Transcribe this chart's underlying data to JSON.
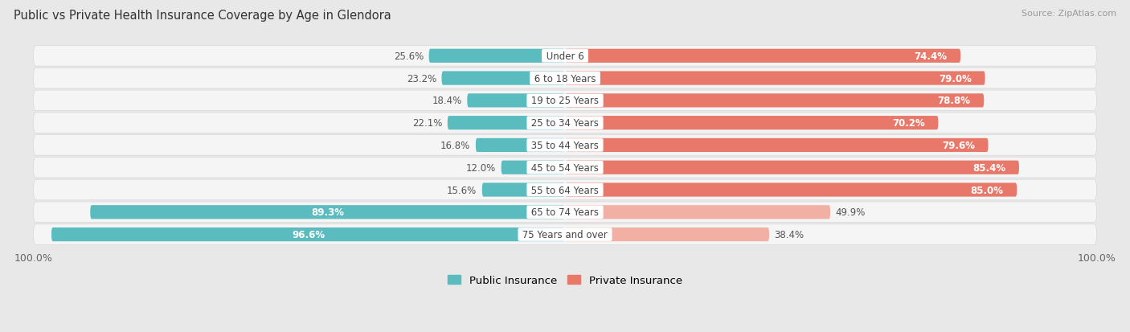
{
  "title": "Public vs Private Health Insurance Coverage by Age in Glendora",
  "source": "Source: ZipAtlas.com",
  "categories": [
    "Under 6",
    "6 to 18 Years",
    "19 to 25 Years",
    "25 to 34 Years",
    "35 to 44 Years",
    "45 to 54 Years",
    "55 to 64 Years",
    "65 to 74 Years",
    "75 Years and over"
  ],
  "public": [
    25.6,
    23.2,
    18.4,
    22.1,
    16.8,
    12.0,
    15.6,
    89.3,
    96.6
  ],
  "private": [
    74.4,
    79.0,
    78.8,
    70.2,
    79.6,
    85.4,
    85.0,
    49.9,
    38.4
  ],
  "public_color": "#5abcbe",
  "private_color_high": "#e8796a",
  "private_color_low": "#f2b0a5",
  "private_threshold": 60,
  "public_label": "Public Insurance",
  "private_label": "Private Insurance",
  "bar_height": 0.62,
  "bg_color": "#e8e8e8",
  "row_bg_white": "#f5f5f5",
  "row_shadow": "#d8d8d8",
  "center_label_bg": "#ffffff",
  "xlim": 100,
  "label_fontsize": 8.5,
  "title_fontsize": 10.5,
  "source_fontsize": 8
}
